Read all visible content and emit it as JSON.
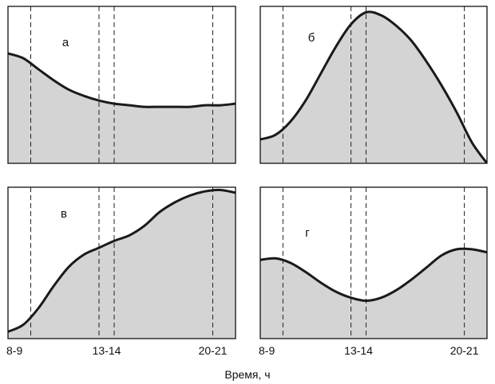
{
  "chart_data": [
    {
      "type": "area",
      "panel": "а",
      "x_ticks": [
        "8-9",
        "13-14",
        "20-21"
      ],
      "x": [
        7,
        8,
        9,
        10,
        11,
        12,
        13,
        14,
        15,
        16,
        17,
        18,
        19,
        20,
        21,
        22
      ],
      "values": [
        0.7,
        0.67,
        0.6,
        0.53,
        0.47,
        0.43,
        0.4,
        0.38,
        0.37,
        0.36,
        0.36,
        0.36,
        0.36,
        0.37,
        0.37,
        0.38
      ],
      "ylim": [
        0,
        1
      ]
    },
    {
      "type": "area",
      "panel": "б",
      "x_ticks": [
        "8-9",
        "13-14",
        "20-21"
      ],
      "x": [
        7,
        8,
        9,
        10,
        11,
        12,
        13,
        14,
        15,
        16,
        17,
        18,
        19,
        20,
        21,
        22
      ],
      "values": [
        0.16,
        0.19,
        0.28,
        0.42,
        0.6,
        0.78,
        0.93,
        1.01,
        0.99,
        0.92,
        0.82,
        0.68,
        0.52,
        0.34,
        0.14,
        0.0
      ],
      "ylim": [
        0,
        1.05
      ]
    },
    {
      "type": "area",
      "panel": "в",
      "x_ticks": [
        "8-9",
        "13-14",
        "20-21"
      ],
      "x": [
        7,
        8,
        9,
        10,
        11,
        12,
        13,
        14,
        15,
        16,
        17,
        18,
        19,
        20,
        21,
        22
      ],
      "values": [
        0.05,
        0.1,
        0.22,
        0.38,
        0.52,
        0.61,
        0.66,
        0.71,
        0.75,
        0.82,
        0.92,
        0.99,
        1.04,
        1.07,
        1.08,
        1.06
      ],
      "ylim": [
        0,
        1.1
      ]
    },
    {
      "type": "area",
      "panel": "г",
      "x_ticks": [
        "8-9",
        "13-14",
        "20-21"
      ],
      "x": [
        7,
        8,
        9,
        10,
        11,
        12,
        13,
        14,
        15,
        16,
        17,
        18,
        19,
        20,
        21,
        22
      ],
      "values": [
        0.52,
        0.53,
        0.5,
        0.44,
        0.37,
        0.31,
        0.27,
        0.25,
        0.27,
        0.32,
        0.39,
        0.47,
        0.55,
        0.59,
        0.59,
        0.57
      ],
      "ylim": [
        0,
        1
      ]
    }
  ],
  "vlines": [
    8.5,
    13,
    14,
    20.5
  ],
  "xlim": [
    7,
    22
  ],
  "xlabel": "Время, ч"
}
